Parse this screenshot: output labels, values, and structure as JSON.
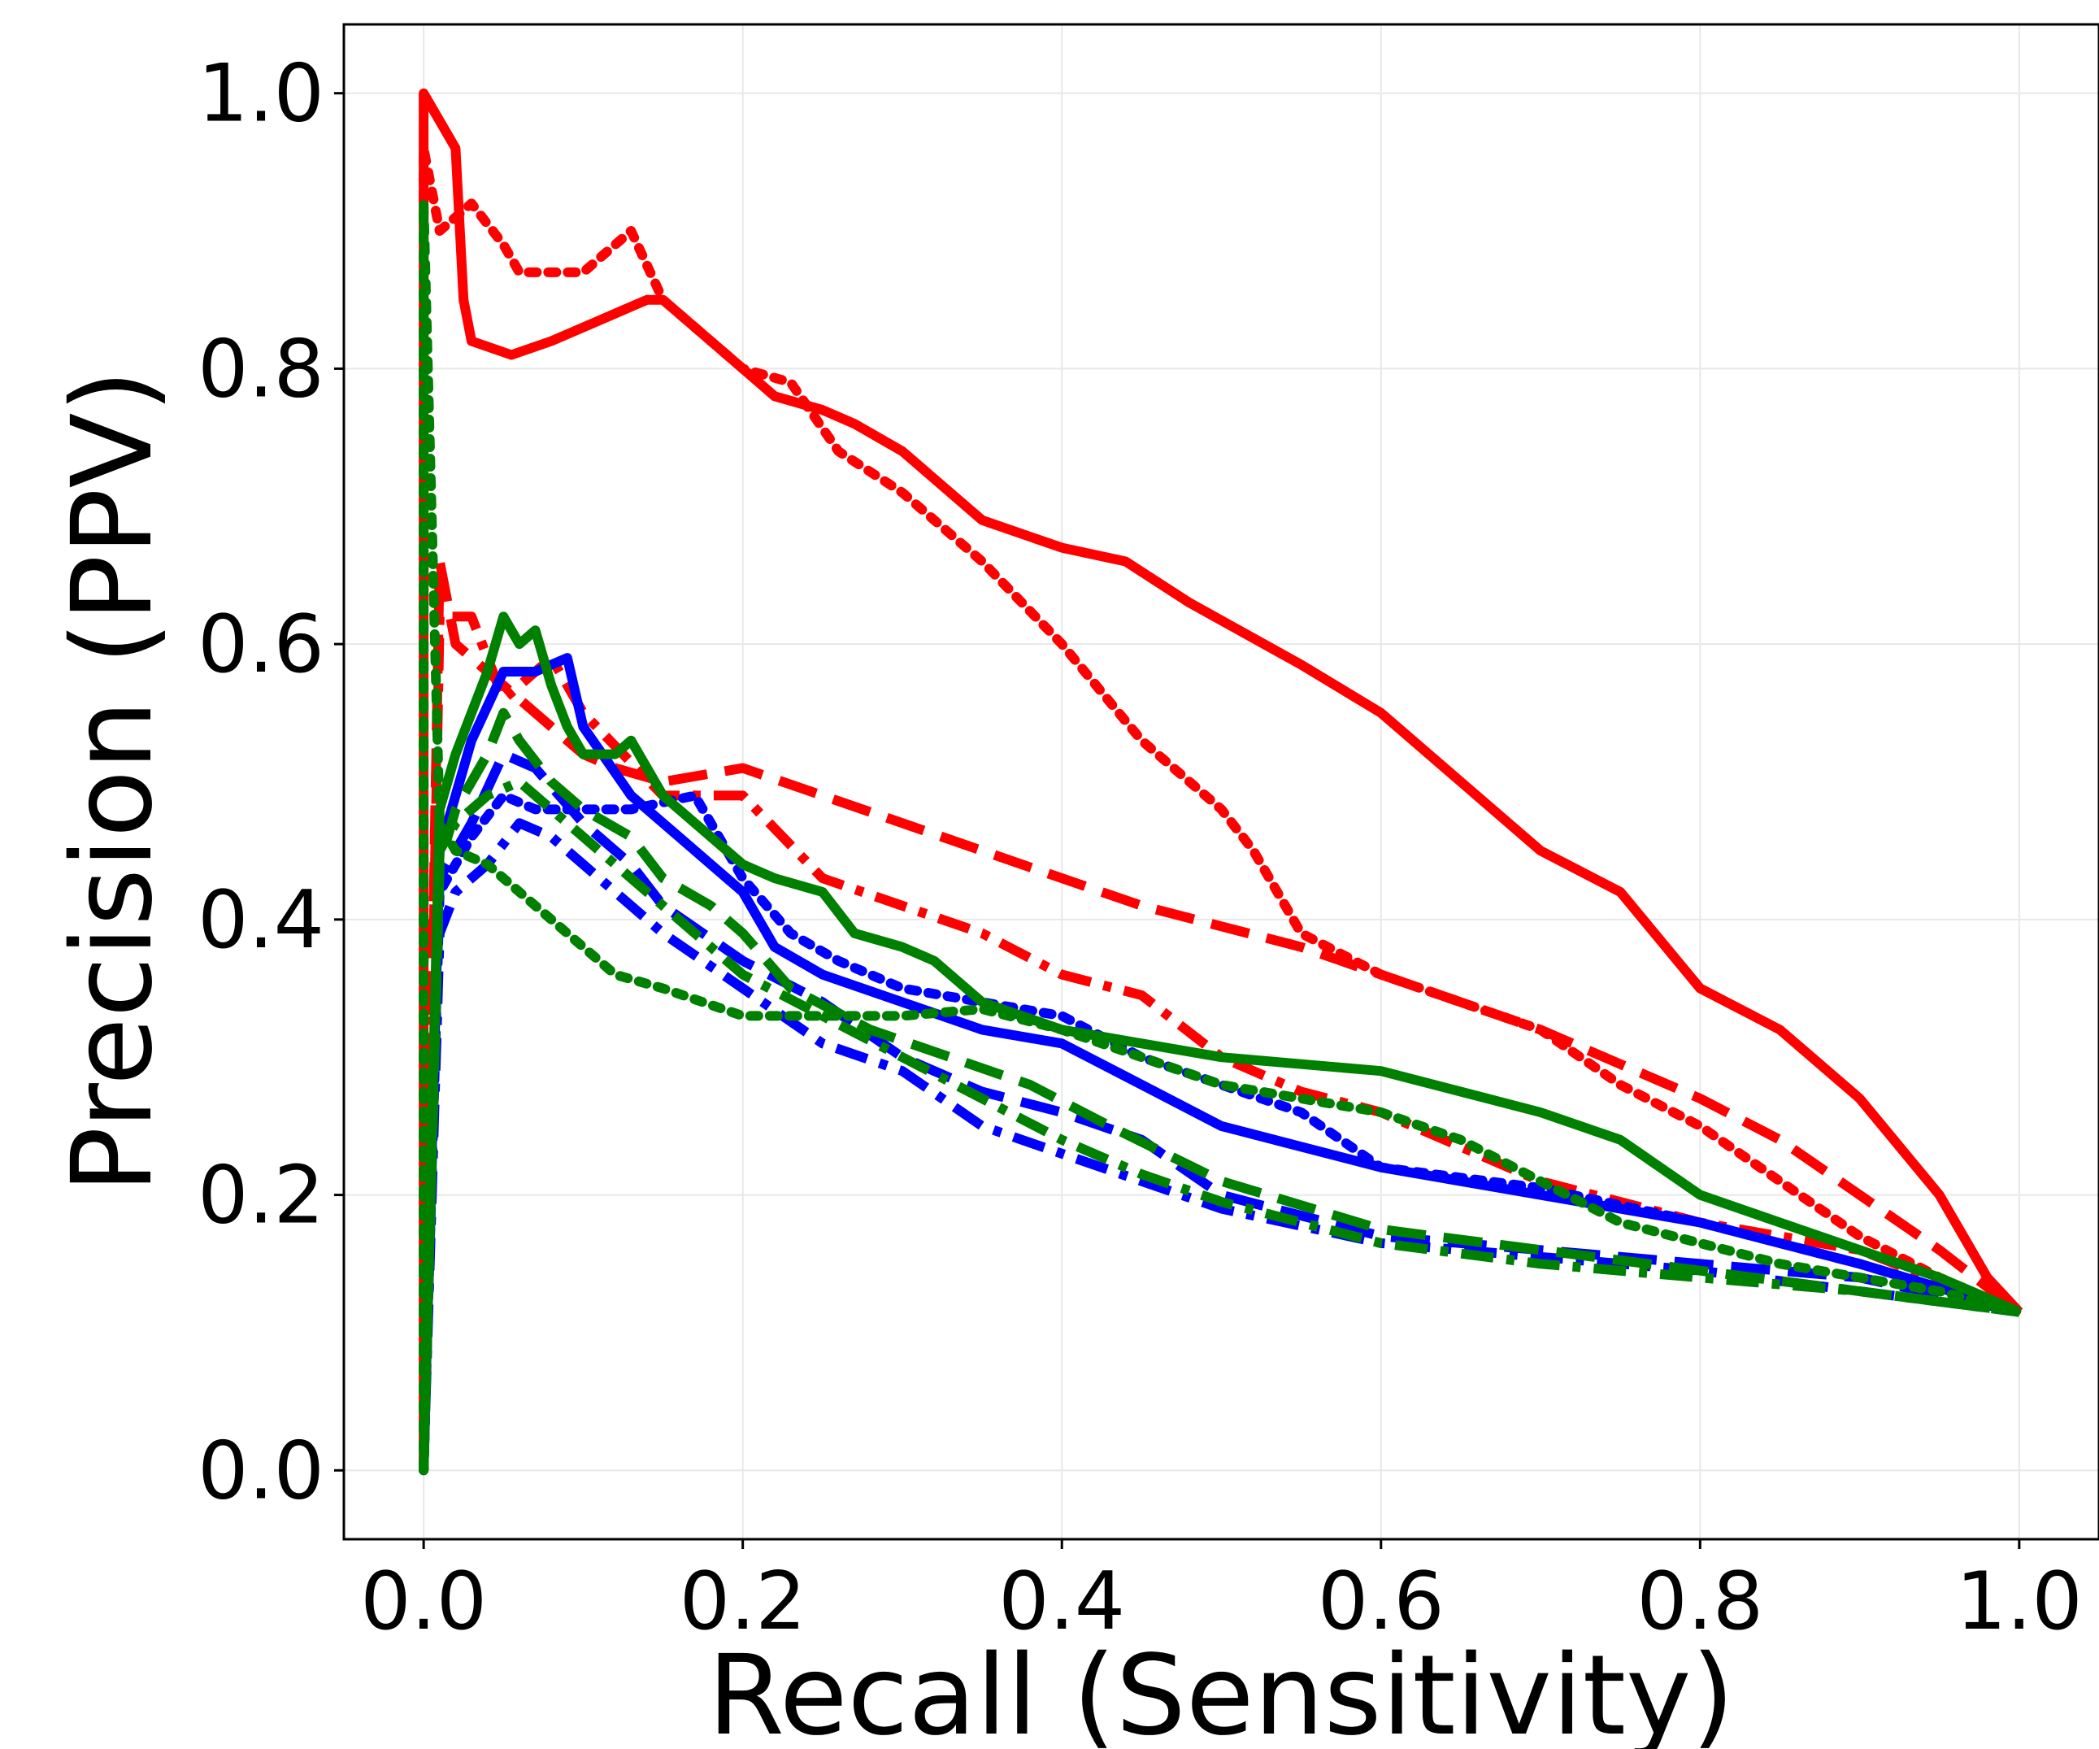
{
  "chart_data": {
    "type": "line",
    "xlabel": "Recall (Sensitivity)",
    "ylabel": "Precision (PPV)",
    "xlim": [
      -0.05,
      1.05
    ],
    "ylim": [
      -0.05,
      1.05
    ],
    "xticks": [
      0.0,
      0.2,
      0.4,
      0.6,
      0.8,
      1.0
    ],
    "yticks": [
      0.0,
      0.2,
      0.4,
      0.6,
      0.8,
      1.0
    ],
    "xtick_labels": [
      "0.0",
      "0.2",
      "0.4",
      "0.6",
      "0.8",
      "1.0"
    ],
    "ytick_labels": [
      "0.0",
      "0.2",
      "0.4",
      "0.6",
      "0.8",
      "1.0"
    ],
    "grid": true,
    "legend": "none",
    "series": [
      {
        "color": "#ff0000",
        "dash": "solid",
        "x": [
          0.0,
          0.0,
          0.02,
          0.025,
          0.03,
          0.055,
          0.08,
          0.1,
          0.14,
          0.15,
          0.18,
          0.21,
          0.22,
          0.25,
          0.27,
          0.3,
          0.35,
          0.4,
          0.44,
          0.48,
          0.55,
          0.6,
          0.65,
          0.7,
          0.75,
          0.8,
          0.85,
          0.9,
          0.95,
          0.98,
          1.0
        ],
        "y": [
          0.0,
          1.0,
          0.96,
          0.85,
          0.82,
          0.81,
          0.82,
          0.83,
          0.85,
          0.85,
          0.82,
          0.79,
          0.78,
          0.77,
          0.76,
          0.74,
          0.69,
          0.67,
          0.66,
          0.63,
          0.585,
          0.55,
          0.5,
          0.45,
          0.42,
          0.35,
          0.32,
          0.27,
          0.2,
          0.14,
          0.115
        ]
      },
      {
        "color": "#ff0000",
        "dash": "dotted",
        "x": [
          0.0,
          0.0,
          0.01,
          0.03,
          0.05,
          0.06,
          0.1,
          0.13,
          0.15,
          0.2,
          0.23,
          0.26,
          0.3,
          0.35,
          0.4,
          0.45,
          0.5,
          0.52,
          0.55,
          0.6,
          0.65,
          0.7,
          0.75,
          0.8,
          0.85,
          0.9,
          0.95,
          1.0
        ],
        "y": [
          0.0,
          0.96,
          0.9,
          0.92,
          0.89,
          0.87,
          0.87,
          0.9,
          0.85,
          0.8,
          0.79,
          0.74,
          0.71,
          0.66,
          0.6,
          0.53,
          0.48,
          0.45,
          0.39,
          0.36,
          0.34,
          0.32,
          0.28,
          0.25,
          0.21,
          0.17,
          0.14,
          0.115
        ]
      },
      {
        "color": "#ff0000",
        "dash": "dashed",
        "x": [
          0.0,
          0.01,
          0.02,
          0.04,
          0.06,
          0.08,
          0.1,
          0.12,
          0.15,
          0.2,
          0.25,
          0.3,
          0.35,
          0.4,
          0.45,
          0.5,
          0.55,
          0.6,
          0.7,
          0.8,
          0.85,
          0.9,
          0.95,
          1.0
        ],
        "y": [
          0.0,
          0.66,
          0.6,
          0.58,
          0.56,
          0.54,
          0.52,
          0.51,
          0.5,
          0.51,
          0.49,
          0.47,
          0.45,
          0.43,
          0.41,
          0.395,
          0.38,
          0.36,
          0.32,
          0.27,
          0.24,
          0.2,
          0.16,
          0.115
        ]
      },
      {
        "color": "#ff0000",
        "dash": "dashdot",
        "x": [
          0.0,
          0.01,
          0.03,
          0.05,
          0.08,
          0.1,
          0.15,
          0.2,
          0.25,
          0.3,
          0.35,
          0.4,
          0.45,
          0.5,
          0.55,
          0.6,
          0.7,
          0.8,
          0.9,
          1.0
        ],
        "y": [
          0.0,
          0.62,
          0.62,
          0.56,
          0.59,
          0.55,
          0.49,
          0.49,
          0.43,
          0.41,
          0.39,
          0.36,
          0.345,
          0.3,
          0.275,
          0.26,
          0.21,
          0.18,
          0.16,
          0.115
        ]
      },
      {
        "color": "#0000ff",
        "dash": "solid",
        "x": [
          0.0,
          0.01,
          0.03,
          0.05,
          0.07,
          0.09,
          0.1,
          0.13,
          0.16,
          0.2,
          0.22,
          0.25,
          0.3,
          0.35,
          0.4,
          0.45,
          0.5,
          0.55,
          0.6,
          0.7,
          0.8,
          0.9,
          1.0
        ],
        "y": [
          0.0,
          0.45,
          0.53,
          0.58,
          0.58,
          0.59,
          0.54,
          0.49,
          0.46,
          0.42,
          0.38,
          0.36,
          0.34,
          0.32,
          0.31,
          0.28,
          0.25,
          0.235,
          0.22,
          0.2,
          0.18,
          0.15,
          0.115
        ]
      },
      {
        "color": "#0000ff",
        "dash": "dotted",
        "x": [
          0.0,
          0.01,
          0.03,
          0.05,
          0.07,
          0.1,
          0.13,
          0.17,
          0.2,
          0.23,
          0.26,
          0.3,
          0.35,
          0.4,
          0.45,
          0.5,
          0.55,
          0.6,
          0.7,
          0.8,
          0.9,
          1.0
        ],
        "y": [
          0.0,
          0.42,
          0.46,
          0.49,
          0.48,
          0.48,
          0.48,
          0.49,
          0.43,
          0.39,
          0.37,
          0.35,
          0.34,
          0.33,
          0.3,
          0.28,
          0.26,
          0.22,
          0.205,
          0.18,
          0.15,
          0.115
        ]
      },
      {
        "color": "#0000ff",
        "dash": "dashed",
        "x": [
          0.0,
          0.01,
          0.03,
          0.05,
          0.07,
          0.1,
          0.13,
          0.15,
          0.2,
          0.25,
          0.3,
          0.35,
          0.4,
          0.45,
          0.5,
          0.6,
          0.7,
          0.8,
          0.9,
          1.0
        ],
        "y": [
          0.0,
          0.43,
          0.47,
          0.52,
          0.51,
          0.47,
          0.44,
          0.41,
          0.37,
          0.34,
          0.3,
          0.275,
          0.26,
          0.24,
          0.2,
          0.17,
          0.16,
          0.15,
          0.14,
          0.115
        ]
      },
      {
        "color": "#0000ff",
        "dash": "dashdot",
        "x": [
          0.0,
          0.01,
          0.02,
          0.04,
          0.06,
          0.08,
          0.1,
          0.12,
          0.15,
          0.2,
          0.25,
          0.3,
          0.35,
          0.4,
          0.45,
          0.5,
          0.6,
          0.7,
          0.8,
          0.9,
          1.0
        ],
        "y": [
          0.0,
          0.39,
          0.42,
          0.44,
          0.47,
          0.46,
          0.44,
          0.42,
          0.39,
          0.35,
          0.31,
          0.29,
          0.25,
          0.23,
          0.21,
          0.19,
          0.165,
          0.155,
          0.145,
          0.13,
          0.115
        ]
      },
      {
        "color": "#008000",
        "dash": "solid",
        "x": [
          0.0,
          0.01,
          0.02,
          0.04,
          0.05,
          0.06,
          0.07,
          0.08,
          0.09,
          0.1,
          0.12,
          0.13,
          0.15,
          0.18,
          0.2,
          0.22,
          0.25,
          0.27,
          0.3,
          0.32,
          0.35,
          0.4,
          0.45,
          0.5,
          0.55,
          0.6,
          0.65,
          0.7,
          0.75,
          0.8,
          0.85,
          0.9,
          0.95,
          1.0
        ],
        "y": [
          0.0,
          0.48,
          0.52,
          0.58,
          0.62,
          0.6,
          0.61,
          0.57,
          0.54,
          0.52,
          0.52,
          0.53,
          0.49,
          0.46,
          0.44,
          0.43,
          0.42,
          0.39,
          0.38,
          0.37,
          0.34,
          0.32,
          0.31,
          0.3,
          0.295,
          0.29,
          0.275,
          0.26,
          0.24,
          0.2,
          0.18,
          0.16,
          0.14,
          0.115
        ]
      },
      {
        "color": "#008000",
        "dash": "dotted",
        "x": [
          0.0,
          0.0,
          0.01,
          0.02,
          0.04,
          0.06,
          0.08,
          0.1,
          0.12,
          0.15,
          0.2,
          0.25,
          0.3,
          0.35,
          0.4,
          0.45,
          0.5,
          0.6,
          0.65,
          0.7,
          0.75,
          0.8,
          0.85,
          0.9,
          0.95,
          1.0
        ],
        "y": [
          0.0,
          0.92,
          0.47,
          0.45,
          0.44,
          0.42,
          0.4,
          0.38,
          0.36,
          0.35,
          0.33,
          0.33,
          0.33,
          0.335,
          0.32,
          0.3,
          0.28,
          0.26,
          0.24,
          0.21,
          0.18,
          0.165,
          0.15,
          0.14,
          0.13,
          0.115
        ]
      },
      {
        "color": "#008000",
        "dash": "dashed",
        "x": [
          0.0,
          0.01,
          0.02,
          0.04,
          0.05,
          0.06,
          0.08,
          0.1,
          0.13,
          0.15,
          0.18,
          0.2,
          0.23,
          0.28,
          0.33,
          0.38,
          0.43,
          0.5,
          0.6,
          0.7,
          0.8,
          0.9,
          1.0
        ],
        "y": [
          0.0,
          0.44,
          0.48,
          0.52,
          0.55,
          0.53,
          0.5,
          0.48,
          0.46,
          0.43,
          0.41,
          0.39,
          0.35,
          0.32,
          0.3,
          0.28,
          0.25,
          0.21,
          0.175,
          0.16,
          0.145,
          0.13,
          0.115
        ]
      },
      {
        "color": "#008000",
        "dash": "dashdot",
        "x": [
          0.0,
          0.01,
          0.02,
          0.03,
          0.04,
          0.06,
          0.08,
          0.1,
          0.12,
          0.15,
          0.18,
          0.2,
          0.25,
          0.3,
          0.35,
          0.4,
          0.45,
          0.5,
          0.6,
          0.7,
          0.8,
          0.9,
          1.0
        ],
        "y": [
          0.0,
          0.45,
          0.47,
          0.48,
          0.49,
          0.5,
          0.48,
          0.46,
          0.44,
          0.41,
          0.38,
          0.36,
          0.33,
          0.3,
          0.27,
          0.24,
          0.215,
          0.195,
          0.165,
          0.15,
          0.14,
          0.13,
          0.115
        ]
      }
    ]
  }
}
